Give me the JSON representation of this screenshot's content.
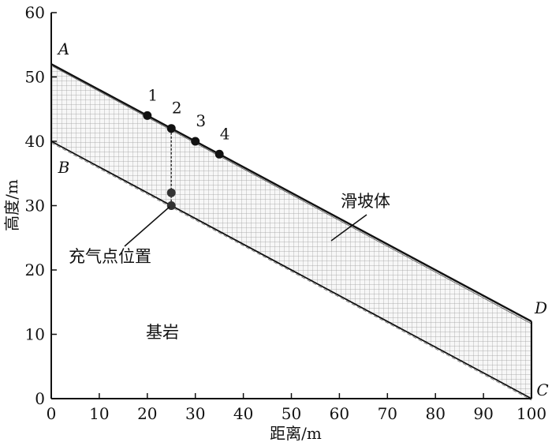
{
  "chart_data": {
    "type": "diagram",
    "xlabel": "距离/m",
    "ylabel": "高度/m",
    "xlim": [
      0,
      100
    ],
    "ylim": [
      0,
      60
    ],
    "x_ticks": [
      "0",
      "10",
      "20",
      "30",
      "40",
      "50",
      "60",
      "70",
      "80",
      "90",
      "100"
    ],
    "y_ticks": [
      "0",
      "10",
      "20",
      "30",
      "40",
      "50",
      "60"
    ],
    "corners": [
      {
        "name": "A",
        "x": 0,
        "y": 52
      },
      {
        "name": "B",
        "x": 0,
        "y": 40
      },
      {
        "name": "C",
        "x": 100,
        "y": 0
      },
      {
        "name": "D",
        "x": 100,
        "y": 12
      }
    ],
    "surface_points": [
      {
        "label": "1",
        "x": 20,
        "y": 44
      },
      {
        "label": "2",
        "x": 25,
        "y": 42
      },
      {
        "label": "3",
        "x": 30,
        "y": 40
      },
      {
        "label": "4",
        "x": 35,
        "y": 38
      }
    ],
    "inflation_points": [
      {
        "x": 25,
        "y": 32
      },
      {
        "x": 25,
        "y": 30
      }
    ],
    "regions": {
      "landslide": "滑坡体",
      "bedrock": "基岩",
      "inflation": "充气点位置"
    }
  }
}
